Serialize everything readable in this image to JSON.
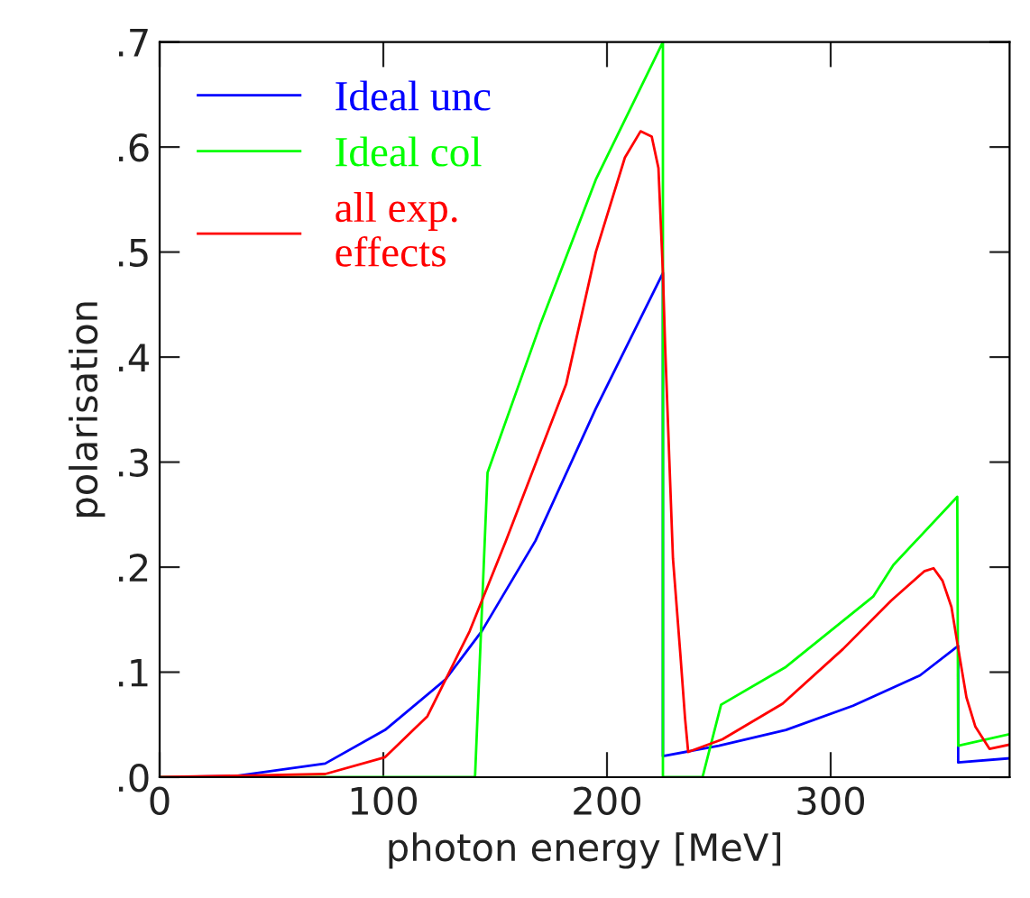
{
  "chart_data": {
    "type": "line",
    "xlabel": "photon energy [MeV]",
    "ylabel": "polarisation",
    "xlim": [
      0,
      380
    ],
    "xticks": [
      0,
      100,
      200,
      300
    ],
    "ylim": [
      0,
      0.7
    ],
    "yticks": [
      {
        "value": 0,
        "label": ".0"
      },
      {
        "value": 0.1,
        "label": ".1"
      },
      {
        "value": 0.2,
        "label": ".2"
      },
      {
        "value": 0.3,
        "label": ".3"
      },
      {
        "value": 0.4,
        "label": ".4"
      },
      {
        "value": 0.5,
        "label": ".5"
      },
      {
        "value": 0.6,
        "label": ".6"
      },
      {
        "value": 0.7,
        "label": ".7"
      }
    ],
    "grid": false,
    "legend": "top left",
    "marker": "none",
    "line_style": "solid",
    "series": [
      {
        "name": "Ideal unc",
        "color": "#0000ff",
        "x": [
          0,
          33.5,
          74,
          100.8,
          127.8,
          144,
          168,
          195,
          225,
          225,
          250,
          280,
          310,
          340,
          357,
          357,
          380
        ],
        "values": [
          0,
          0.001,
          0.013,
          0.045,
          0.093,
          0.139,
          0.225,
          0.351,
          0.48,
          0.02,
          0.03,
          0.045,
          0.068,
          0.097,
          0.125,
          0.014,
          0.018
        ]
      },
      {
        "name": "Ideal col",
        "color": "#00ff00",
        "x": [
          0,
          141,
          146.6,
          170,
          195,
          225,
          225,
          242.7,
          251,
          280,
          319,
          328,
          356.6,
          357,
          380
        ],
        "values": [
          0,
          0,
          0.29,
          0.43,
          0.569,
          0.7,
          0,
          0,
          0.069,
          0.105,
          0.172,
          0.202,
          0.267,
          0.03,
          0.041
        ]
      },
      {
        "name": "all exp.\neffects",
        "color": "#ff0000",
        "x": [
          0,
          74,
          100.8,
          119.7,
          138.6,
          154.8,
          181.7,
          195,
          208,
          215,
          220,
          223,
          225,
          226,
          229.5,
          232.8,
          234.9,
          236.3,
          251.6,
          278.5,
          305.5,
          327,
          341.8,
          346,
          350,
          354,
          356.6,
          360.7,
          364.7,
          371,
          380
        ],
        "values": [
          0,
          0.003,
          0.019,
          0.058,
          0.139,
          0.225,
          0.374,
          0.5,
          0.59,
          0.615,
          0.61,
          0.58,
          0.48,
          0.41,
          0.208,
          0.117,
          0.056,
          0.024,
          0.036,
          0.07,
          0.122,
          0.168,
          0.196,
          0.199,
          0.187,
          0.162,
          0.128,
          0.076,
          0.048,
          0.027,
          0.031
        ]
      }
    ]
  }
}
